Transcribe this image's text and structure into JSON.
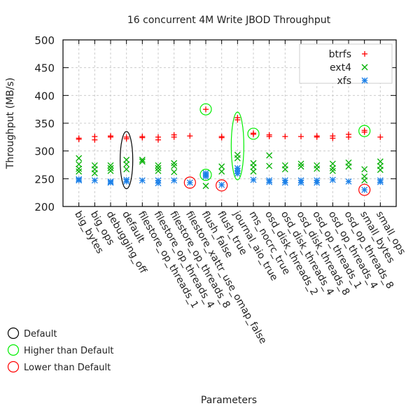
{
  "chart_data": {
    "type": "scatter",
    "title": "16 concurrent 4M Write JBOD Throughput",
    "xlabel": "Parameters",
    "ylabel": "Throughput (MB/s)",
    "ylim": [
      200,
      500
    ],
    "yticks": [
      200,
      250,
      300,
      350,
      400,
      450,
      500
    ],
    "grid": true,
    "legend_placement": "top-right",
    "categories": [
      "big_bytes",
      "big_ops",
      "debugging_off",
      "default",
      "filestore_op_threads_1",
      "filestore_op_threads_4",
      "filestore_op_threads_8",
      "filestore_xattr_use_omap_false",
      "flush_false",
      "flush_true",
      "journal_aio_true",
      "ms_nocrc_true",
      "osd_disk_threads_2",
      "osd_disk_threads_4",
      "osd_disk_threads_8",
      "osd_op_threads_1",
      "osd_op_threads_4",
      "osd_op_threads_8",
      "small_bytes",
      "small_ops"
    ],
    "series": [
      {
        "name": "btrfs",
        "marker": "+",
        "color": "#ff0000",
        "values": [
          [
            323,
            321
          ],
          [
            326,
            320
          ],
          [
            327,
            325
          ],
          [
            325,
            322
          ],
          [
            326,
            324
          ],
          [
            325,
            320
          ],
          [
            329,
            325
          ],
          [
            327
          ],
          [
            375
          ],
          [
            326,
            324
          ],
          [
            360,
            356
          ],
          [
            332,
            330
          ],
          [
            329,
            326
          ],
          [
            326
          ],
          [
            326
          ],
          [
            327,
            325
          ],
          [
            327,
            323
          ],
          [
            330,
            325
          ],
          [
            337,
            334
          ],
          [
            325
          ]
        ]
      },
      {
        "name": "ext4",
        "marker": "x",
        "color": "#00b000",
        "values": [
          [
            287,
            276,
            268,
            263
          ],
          [
            274,
            267,
            260
          ],
          [
            274,
            269,
            264
          ],
          [
            284,
            276,
            267
          ],
          [
            284,
            281
          ],
          [
            274,
            269,
            264
          ],
          [
            278,
            273,
            262
          ],
          [],
          [
            237
          ],
          [
            272,
            263
          ],
          [
            293,
            287
          ],
          [
            278,
            271,
            263
          ],
          [
            292,
            273
          ],
          [
            274,
            267
          ],
          [
            277,
            272
          ],
          [
            274,
            268
          ],
          [
            277,
            269,
            264
          ],
          [
            279,
            272
          ],
          [
            267,
            254,
            247
          ],
          [
            281,
            273,
            266
          ]
        ]
      },
      {
        "name": "xfs",
        "marker": "*",
        "color": "#1a7fe8",
        "values": [
          [
            249,
            247
          ],
          [
            247
          ],
          [
            245,
            243
          ],
          [
            248,
            245
          ],
          [
            247
          ],
          [
            247,
            242
          ],
          [
            247
          ],
          [
            243
          ],
          [
            260,
            257,
            254
          ],
          [
            239
          ],
          [
            269,
            264,
            259
          ],
          [
            248
          ],
          [
            247,
            244
          ],
          [
            247,
            243
          ],
          [
            247,
            243
          ],
          [
            247,
            243
          ],
          [
            248
          ],
          [
            245
          ],
          [
            230
          ],
          [
            247,
            244
          ]
        ]
      }
    ],
    "annotations": [
      {
        "category": "default",
        "series": "all",
        "kind": "default",
        "ymin": 232,
        "ymax": 335
      },
      {
        "category": "filestore_xattr_use_omap_false",
        "series": "xfs",
        "kind": "lower",
        "y": 243
      },
      {
        "category": "flush_false",
        "series": "btrfs",
        "kind": "higher",
        "y": 375
      },
      {
        "category": "flush_false",
        "series": "xfs",
        "kind": "higher",
        "y": 257
      },
      {
        "category": "flush_true",
        "series": "xfs",
        "kind": "lower",
        "y": 238
      },
      {
        "category": "journal_aio_true",
        "series": "all",
        "kind": "higher",
        "ymin": 248,
        "ymax": 370
      },
      {
        "category": "ms_nocrc_true",
        "series": "btrfs",
        "kind": "higher",
        "y": 331
      },
      {
        "category": "small_bytes",
        "series": "btrfs",
        "kind": "higher",
        "y": 336
      },
      {
        "category": "small_bytes",
        "series": "xfs",
        "kind": "lower",
        "y": 230
      }
    ],
    "annotation_legend": [
      {
        "kind": "default",
        "label": "Default",
        "color": "#000000"
      },
      {
        "kind": "higher",
        "label": "Higher than Default",
        "color": "#00ee00"
      },
      {
        "kind": "lower",
        "label": "Lower than Default",
        "color": "#ff0000"
      }
    ]
  }
}
